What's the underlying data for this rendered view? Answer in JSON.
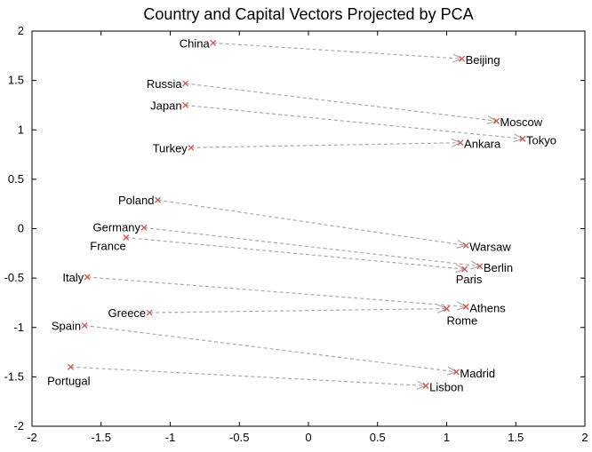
{
  "chart_data": {
    "type": "scatter",
    "title": "Country and Capital Vectors Projected by PCA",
    "xlabel": "",
    "ylabel": "",
    "xlim": [
      -2,
      2
    ],
    "ylim": [
      -2,
      2
    ],
    "xticks": [
      "-2",
      "-1.5",
      "-1",
      "-0.5",
      "0",
      "0.5",
      "1",
      "1.5",
      "2"
    ],
    "yticks": [
      "2",
      "1.5",
      "1",
      "0.5",
      "0",
      "-0.5",
      "-1",
      "-1.5",
      "-2"
    ],
    "grid": false,
    "marker_color": "#d9534f",
    "arrow_color": "#aaaaaa",
    "pairs": [
      {
        "country": "China",
        "cx": -0.69,
        "cy": 1.88,
        "capital": "Beijing",
        "kx": 1.11,
        "ky": 1.72
      },
      {
        "country": "Russia",
        "cx": -0.89,
        "cy": 1.47,
        "capital": "Moscow",
        "kx": 1.36,
        "ky": 1.09
      },
      {
        "country": "Japan",
        "cx": -0.89,
        "cy": 1.25,
        "capital": "Tokyo",
        "kx": 1.55,
        "ky": 0.91
      },
      {
        "country": "Turkey",
        "cx": -0.85,
        "cy": 0.82,
        "capital": "Ankara",
        "kx": 1.1,
        "ky": 0.87
      },
      {
        "country": "Poland",
        "cx": -1.09,
        "cy": 0.29,
        "capital": "Warsaw",
        "kx": 1.14,
        "ky": -0.17
      },
      {
        "country": "Germany",
        "cx": -1.19,
        "cy": 0.01,
        "capital": "Berlin",
        "kx": 1.24,
        "ky": -0.38
      },
      {
        "country": "France",
        "cx": -1.32,
        "cy": -0.09,
        "capital": "Paris",
        "kx": 1.13,
        "ky": -0.41
      },
      {
        "country": "Italy",
        "cx": -1.6,
        "cy": -0.49,
        "capital": "Athens",
        "kx": 1.14,
        "ky": -0.79
      },
      {
        "country": "Greece",
        "cx": -1.15,
        "cy": -0.85,
        "capital": "Rome",
        "kx": 1.0,
        "ky": -0.81
      },
      {
        "country": "Spain",
        "cx": -1.62,
        "cy": -0.98,
        "capital": "Madrid",
        "kx": 1.07,
        "ky": -1.45
      },
      {
        "country": "Portugal",
        "cx": -1.72,
        "cy": -1.4,
        "capital": "Lisbon",
        "kx": 0.85,
        "ky": -1.59
      }
    ]
  }
}
